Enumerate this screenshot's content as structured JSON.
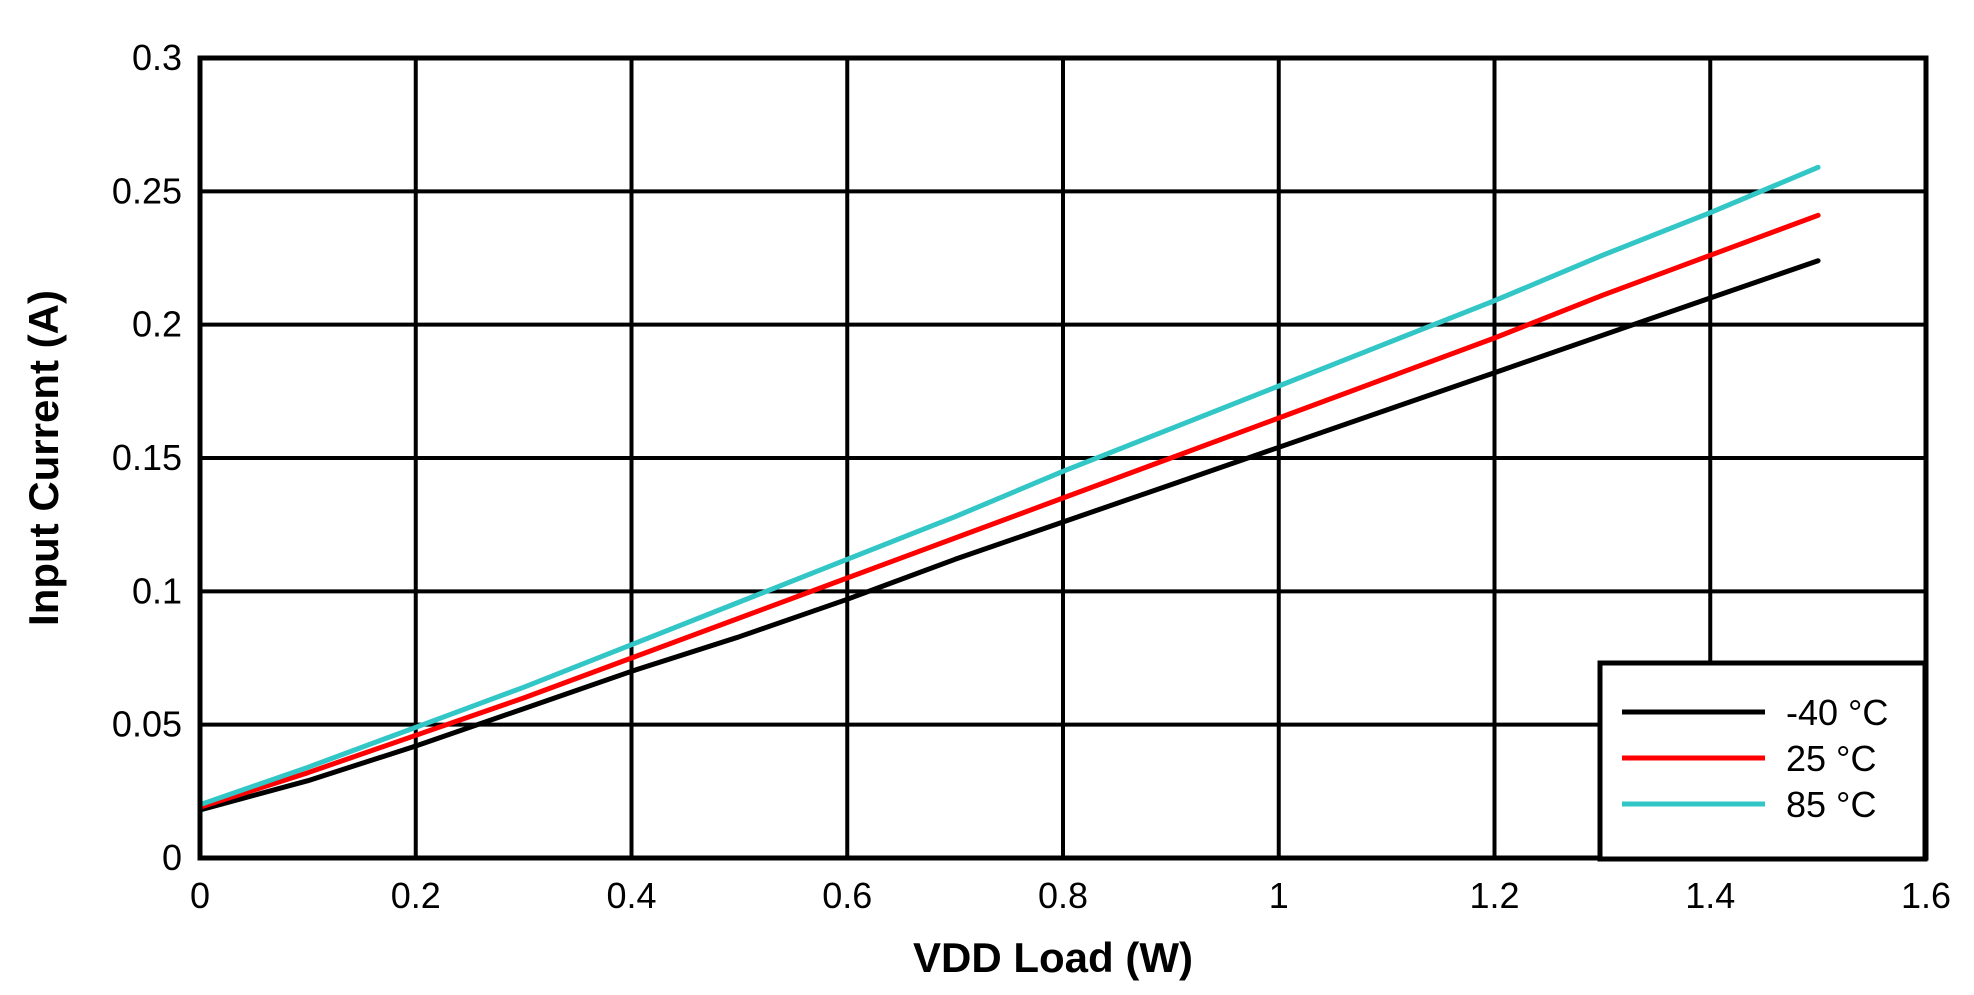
{
  "chart_data": {
    "type": "line",
    "title": "",
    "xlabel": "VDD Load (W)",
    "ylabel": "Input Current (A)",
    "xlim": [
      0,
      1.6
    ],
    "ylim": [
      0,
      0.3
    ],
    "xticks": [
      0,
      0.2,
      0.4,
      0.6,
      0.8,
      1,
      1.2,
      1.4,
      1.6
    ],
    "yticks": [
      0,
      0.05,
      0.1,
      0.15,
      0.2,
      0.25,
      0.3
    ],
    "xtick_labels": [
      "0",
      "0.2",
      "0.4",
      "0.6",
      "0.8",
      "1",
      "1.2",
      "1.4",
      "1.6"
    ],
    "ytick_labels": [
      "0",
      "0.05",
      "0.1",
      "0.15",
      "0.2",
      "0.25",
      "0.3"
    ],
    "grid": true,
    "legend_position": "bottom-right",
    "x": [
      0,
      0.1,
      0.2,
      0.3,
      0.4,
      0.5,
      0.6,
      0.7,
      0.8,
      0.9,
      1.0,
      1.1,
      1.2,
      1.3,
      1.4,
      1.5
    ],
    "series": [
      {
        "name": "-40 °C",
        "color": "#000000",
        "values": [
          0.018,
          0.029,
          0.042,
          0.056,
          0.07,
          0.083,
          0.097,
          0.112,
          0.126,
          0.14,
          0.154,
          0.168,
          0.182,
          0.196,
          0.21,
          0.224
        ]
      },
      {
        "name": "25 °C",
        "color": "#ff0000",
        "values": [
          0.019,
          0.032,
          0.046,
          0.06,
          0.075,
          0.09,
          0.105,
          0.12,
          0.135,
          0.15,
          0.165,
          0.18,
          0.195,
          0.211,
          0.226,
          0.241
        ]
      },
      {
        "name": "85 °C",
        "color": "#33c6c6",
        "values": [
          0.02,
          0.034,
          0.049,
          0.064,
          0.08,
          0.096,
          0.112,
          0.128,
          0.145,
          0.161,
          0.177,
          0.193,
          0.209,
          0.226,
          0.242,
          0.259
        ]
      }
    ]
  }
}
